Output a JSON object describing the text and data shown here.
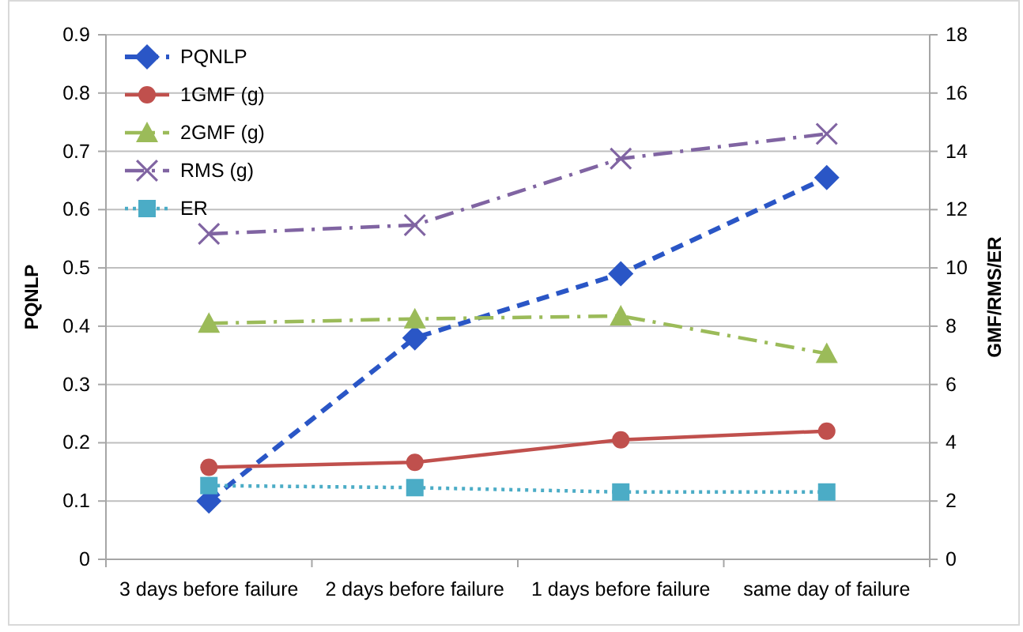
{
  "chart_data": {
    "type": "line",
    "categories": [
      "3 days before failure",
      "2 days before failure",
      "1 days before failure",
      "same day of failure"
    ],
    "ylabel": "PQNLP",
    "y2label": "GMF/RMS/ER",
    "ylim": [
      0,
      0.9
    ],
    "yticks": [
      0,
      0.1,
      0.2,
      0.3,
      0.4,
      0.5,
      0.6,
      0.7,
      0.8,
      0.9
    ],
    "y2lim": [
      0,
      18
    ],
    "y2ticks": [
      0,
      2,
      4,
      6,
      8,
      10,
      12,
      14,
      16,
      18
    ],
    "grid": "y",
    "legend": "top left",
    "series": [
      {
        "name": "PQNLP",
        "color": "#2a56c6",
        "values": [
          0.1,
          0.38,
          0.49,
          0.655
        ],
        "marker": "diamond",
        "line_style": "dashed"
      },
      {
        "name": "1GMF (g)",
        "color": "#c0504d",
        "values": [
          3.16,
          3.33,
          4.1,
          4.4
        ],
        "axis": "y2",
        "marker": "circle",
        "line_style": "solid"
      },
      {
        "name": "2GMF (g)",
        "color": "#9bbb59",
        "values": [
          8.1,
          8.25,
          8.35,
          7.06
        ],
        "axis": "y2",
        "marker": "triangle",
        "line_style": "dashdot"
      },
      {
        "name": "RMS (g)",
        "color": "#8064a2",
        "values": [
          11.17,
          11.47,
          13.75,
          14.6
        ],
        "axis": "y2",
        "marker": "cross",
        "line_style": "dashdot"
      },
      {
        "name": "ER",
        "color": "#4bacc6",
        "values": [
          2.53,
          2.46,
          2.31,
          2.31
        ],
        "axis": "y2",
        "marker": "square",
        "line_style": "dotted"
      }
    ]
  }
}
